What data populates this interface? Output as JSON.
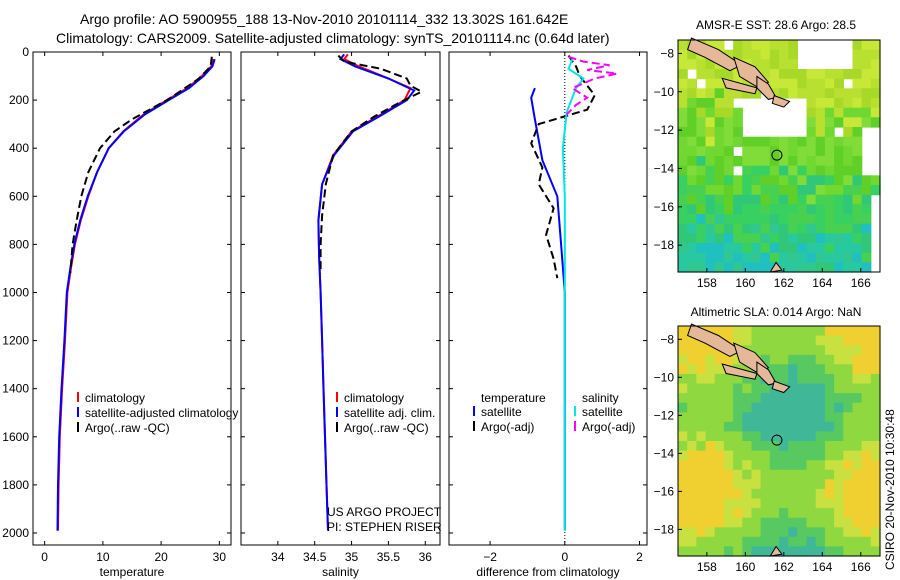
{
  "header": {
    "line1": "Argo profile: AO 5900955_188 13-Nov-2010 20101114_332 13.302S 161.642E",
    "line2": "Climatology: CARS2009. Satellite-adjusted climatology: synTS_20101114.nc (0.64d later)"
  },
  "side_label": "CSIRO 20-Nov-2010 10:30:48",
  "colors": {
    "clim": "#ff0000",
    "sat": "#0000ff",
    "argo": "#000000",
    "sal_sat": "#00e5e5",
    "sal_argo": "#ff00ff"
  },
  "chart_data": [
    {
      "type": "line",
      "xlabel": "temperature",
      "xlim": [
        -2,
        32
      ],
      "ylim": [
        2050,
        0
      ],
      "xticks": [
        0,
        10,
        20,
        30
      ],
      "yticks": [
        0,
        200,
        400,
        600,
        800,
        1000,
        1200,
        1400,
        1600,
        1800,
        2000
      ],
      "legend": [
        "climatology",
        "satellite-adjusted climatology",
        "Argo(..raw -QC)"
      ],
      "series": [
        {
          "name": "climatology",
          "color": "#ff0000",
          "dash": "",
          "points": [
            [
              29,
              30
            ],
            [
              28.6,
              60
            ],
            [
              27,
              100
            ],
            [
              24.5,
              150
            ],
            [
              21,
              200
            ],
            [
              17,
              260
            ],
            [
              13.5,
              330
            ],
            [
              11,
              400
            ],
            [
              9,
              500
            ],
            [
              7.5,
              600
            ],
            [
              6.2,
              700
            ],
            [
              5.2,
              800
            ],
            [
              4.5,
              900
            ],
            [
              3.9,
              1000
            ],
            [
              3.5,
              1200
            ],
            [
              3,
              1400
            ],
            [
              2.6,
              1600
            ],
            [
              2.4,
              1800
            ],
            [
              2.3,
              1990
            ]
          ]
        },
        {
          "name": "satellite-adjusted climatology",
          "color": "#0000ff",
          "dash": "",
          "points": [
            [
              29.2,
              30
            ],
            [
              28.8,
              60
            ],
            [
              27.3,
              100
            ],
            [
              24.8,
              150
            ],
            [
              21.3,
              200
            ],
            [
              17.2,
              260
            ],
            [
              13.6,
              330
            ],
            [
              11,
              400
            ],
            [
              9,
              500
            ],
            [
              7.4,
              600
            ],
            [
              6.1,
              700
            ],
            [
              5.1,
              800
            ],
            [
              4.4,
              900
            ],
            [
              3.8,
              1000
            ],
            [
              3.4,
              1200
            ],
            [
              2.9,
              1400
            ],
            [
              2.5,
              1600
            ],
            [
              2.3,
              1800
            ],
            [
              2.2,
              1990
            ]
          ]
        },
        {
          "name": "Argo(..raw -QC)",
          "color": "#000000",
          "dash": "8,4",
          "points": [
            [
              28.7,
              20
            ],
            [
              28.5,
              60
            ],
            [
              26.5,
              110
            ],
            [
              23.5,
              160
            ],
            [
              21,
              200
            ],
            [
              15,
              280
            ],
            [
              12,
              330
            ],
            [
              9.5,
              400
            ],
            [
              7.5,
              500
            ],
            [
              6.3,
              600
            ],
            [
              5.5,
              700
            ],
            [
              4.8,
              800
            ],
            [
              4.4,
              920
            ]
          ]
        }
      ]
    },
    {
      "type": "line",
      "xlabel": "salinity",
      "xlim": [
        33.5,
        36.2
      ],
      "ylim": [
        2050,
        0
      ],
      "xticks": [
        34,
        34.5,
        35,
        35.5,
        36
      ],
      "xticklabels": [
        "34",
        "34.5",
        "35",
        "35.5",
        "36"
      ],
      "legend": [
        "climatology",
        "satellite adj. clim.",
        "Argo(..raw -QC)"
      ],
      "annotation": [
        "US ARGO PROJECT",
        "PI: STEPHEN RISER"
      ],
      "series": [
        {
          "name": "climatology",
          "color": "#ff0000",
          "dash": "",
          "points": [
            [
              34.95,
              10
            ],
            [
              34.9,
              30
            ],
            [
              35.1,
              60
            ],
            [
              35.5,
              110
            ],
            [
              35.8,
              150
            ],
            [
              35.72,
              200
            ],
            [
              35.4,
              260
            ],
            [
              35,
              330
            ],
            [
              34.75,
              430
            ],
            [
              34.6,
              550
            ],
            [
              34.55,
              700
            ],
            [
              34.56,
              850
            ],
            [
              34.58,
              1000
            ],
            [
              34.6,
              1200
            ],
            [
              34.62,
              1400
            ],
            [
              34.64,
              1600
            ],
            [
              34.66,
              1800
            ],
            [
              34.68,
              1990
            ]
          ]
        },
        {
          "name": "satellite adj. clim.",
          "color": "#0000ff",
          "dash": "",
          "points": [
            [
              34.9,
              10
            ],
            [
              34.85,
              30
            ],
            [
              35.05,
              60
            ],
            [
              35.5,
              110
            ],
            [
              35.85,
              160
            ],
            [
              35.75,
              200
            ],
            [
              35.42,
              260
            ],
            [
              35.02,
              330
            ],
            [
              34.76,
              430
            ],
            [
              34.6,
              550
            ],
            [
              34.55,
              700
            ],
            [
              34.56,
              850
            ],
            [
              34.58,
              1000
            ],
            [
              34.6,
              1200
            ],
            [
              34.62,
              1400
            ],
            [
              34.64,
              1600
            ],
            [
              34.66,
              1800
            ],
            [
              34.68,
              1990
            ]
          ]
        },
        {
          "name": "Argo(..raw -QC)",
          "color": "#000000",
          "dash": "8,4",
          "points": [
            [
              34.82,
              15
            ],
            [
              34.9,
              40
            ],
            [
              35.4,
              70
            ],
            [
              35.75,
              110
            ],
            [
              35.8,
              140
            ],
            [
              35.95,
              165
            ],
            [
              35.65,
              210
            ],
            [
              35.3,
              270
            ],
            [
              35,
              330
            ],
            [
              34.75,
              430
            ],
            [
              34.65,
              550
            ],
            [
              34.6,
              680
            ],
            [
              34.58,
              800
            ],
            [
              34.58,
              920
            ]
          ]
        }
      ]
    },
    {
      "type": "line",
      "xlabel": "difference from climatology",
      "xlim": [
        -3.1,
        2.2
      ],
      "ylim": [
        2050,
        0
      ],
      "xticks": [
        -2,
        0,
        2
      ],
      "xticklabels": [
        "−2",
        "0",
        "2"
      ],
      "legend_headers": [
        "temperature",
        "salinity"
      ],
      "legend": [
        "satellite",
        "Argo(-adj)",
        "satellite",
        "Argo(-adj)"
      ],
      "series": [
        {
          "name": "temperature satellite",
          "color": "#0000ff",
          "dash": "",
          "points": [
            [
              -0.8,
              150
            ],
            [
              -0.9,
              190
            ],
            [
              -0.8,
              280
            ],
            [
              -0.6,
              450
            ],
            [
              -0.2,
              600
            ],
            [
              -0.1,
              800
            ],
            [
              0,
              1000
            ],
            [
              0,
              1990
            ]
          ]
        },
        {
          "name": "temperature Argo(-adj)",
          "color": "#000000",
          "dash": "8,4",
          "points": [
            [
              0.1,
              15
            ],
            [
              0.3,
              60
            ],
            [
              0.4,
              100
            ],
            [
              0.8,
              180
            ],
            [
              0.6,
              240
            ],
            [
              -0.7,
              300
            ],
            [
              -0.9,
              380
            ],
            [
              -0.6,
              480
            ],
            [
              -0.7,
              550
            ],
            [
              -0.3,
              650
            ],
            [
              -0.5,
              760
            ],
            [
              -0.3,
              860
            ],
            [
              -0.2,
              940
            ]
          ]
        },
        {
          "name": "salinity satellite",
          "color": "#00e5e5",
          "dash": "",
          "points": [
            [
              0.2,
              30
            ],
            [
              0.1,
              70
            ],
            [
              0.5,
              110
            ],
            [
              0.3,
              150
            ],
            [
              0.05,
              250
            ],
            [
              -0.05,
              400
            ],
            [
              0,
              600
            ],
            [
              0,
              1000
            ],
            [
              0,
              1990
            ]
          ]
        },
        {
          "name": "salinity Argo(-adj)",
          "color": "#ff00ff",
          "dash": "8,4",
          "points": [
            [
              0.1,
              20
            ],
            [
              0.5,
              40
            ],
            [
              1.2,
              55
            ],
            [
              0.6,
              75
            ],
            [
              1.4,
              90
            ],
            [
              0.8,
              110
            ],
            [
              0.2,
              150
            ],
            [
              0.6,
              190
            ],
            [
              0.3,
              220
            ],
            [
              0.05,
              260
            ]
          ]
        }
      ]
    }
  ],
  "maps": [
    {
      "title": "AMSR-E SST: 28.6 Argo: 28.5",
      "xticks": [
        "158",
        "160",
        "162",
        "164",
        "166"
      ],
      "yticks": [
        "−8",
        "−10",
        "−12",
        "−14",
        "−16",
        "−18"
      ],
      "lon_range": [
        156.5,
        167
      ],
      "lat_range": [
        -7.3,
        -19.4
      ]
    },
    {
      "title": "Altimetric SLA: 0.014 Argo: NaN",
      "xticks": [
        "158",
        "160",
        "162",
        "164",
        "166"
      ],
      "yticks": [
        "−8",
        "−10",
        "−12",
        "−14",
        "−16",
        "−18"
      ],
      "lon_range": [
        156.5,
        167
      ],
      "lat_range": [
        -7.3,
        -19.4
      ]
    }
  ]
}
